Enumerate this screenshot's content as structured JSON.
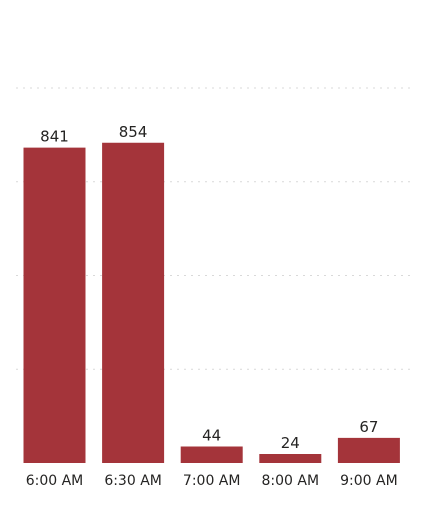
{
  "chart_data": {
    "type": "bar",
    "categories": [
      "6:00 AM",
      "6:30 AM",
      "7:00 AM",
      "8:00 AM",
      "9:00 AM"
    ],
    "values": [
      841,
      854,
      44,
      24,
      67
    ],
    "title": "",
    "xlabel": "",
    "ylabel": "",
    "ylim": [
      0,
      1000
    ],
    "grid": true,
    "legend": "none",
    "bar_color": "#a4343a",
    "grid_color": "#d9d9d9",
    "text_color": "#252423"
  }
}
